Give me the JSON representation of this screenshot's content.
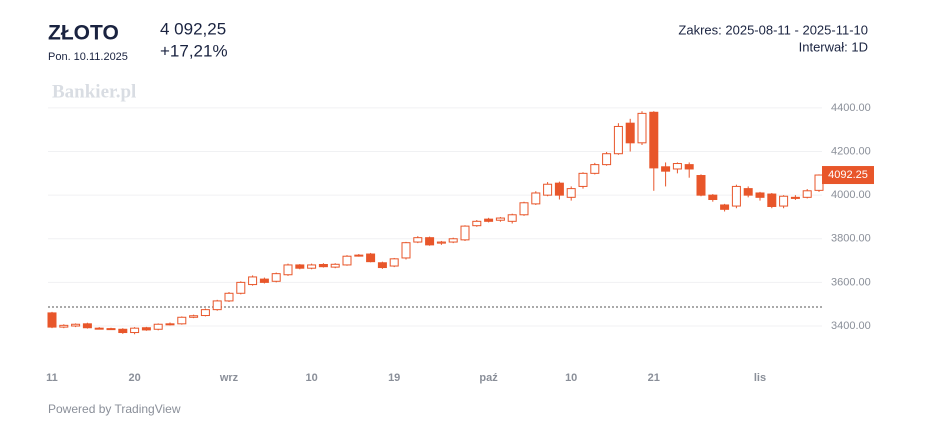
{
  "chart_data": {
    "type": "candlestick",
    "title": "ZŁOTO",
    "subtitle": "Pon. 10.11.2025",
    "price": "4 092,25",
    "change": "+17,21%",
    "range": "Zakres: 2025-08-11 - 2025-11-10",
    "interval": "Interwał: 1D",
    "watermark": "Bankier.pl",
    "footer": "Powered by TradingView",
    "categories": [
      "11",
      null,
      null,
      null,
      null,
      null,
      null,
      "20",
      null,
      null,
      null,
      null,
      null,
      null,
      null,
      "wrz",
      null,
      null,
      null,
      null,
      null,
      null,
      "10",
      null,
      null,
      null,
      null,
      null,
      null,
      "19",
      null,
      null,
      null,
      null,
      null,
      null,
      null,
      "paź",
      null,
      null,
      null,
      null,
      null,
      null,
      "10",
      null,
      null,
      null,
      null,
      null,
      null,
      "21",
      null,
      null,
      null,
      null,
      null,
      null,
      null,
      null,
      "lis",
      null,
      null,
      null,
      null,
      null
    ],
    "open": [
      3460,
      3395,
      3400,
      3410,
      3390,
      3388,
      3385,
      3370,
      3392,
      3385,
      3408,
      3410,
      3440,
      3448,
      3475,
      3515,
      3550,
      3590,
      3615,
      3605,
      3635,
      3680,
      3665,
      3682,
      3670,
      3680,
      3722,
      3730,
      3690,
      3675,
      3712,
      3785,
      3805,
      3780,
      3785,
      3795,
      3860,
      3890,
      3885,
      3880,
      3910,
      3960,
      4000,
      4055,
      3990,
      4040,
      4100,
      4140,
      4190,
      4330,
      4240,
      4380,
      4130,
      4120,
      4140,
      4090,
      4000,
      3955,
      3950,
      4030,
      4010,
      4005,
      3950,
      3990,
      3990,
      4022
    ],
    "high": [
      3465,
      3408,
      3412,
      3415,
      3395,
      3392,
      3390,
      3395,
      3396,
      3412,
      3416,
      3444,
      3452,
      3480,
      3520,
      3556,
      3605,
      3632,
      3622,
      3645,
      3686,
      3684,
      3686,
      3688,
      3688,
      3725,
      3730,
      3735,
      3695,
      3712,
      3786,
      3812,
      3810,
      3790,
      3805,
      3862,
      3886,
      3896,
      3900,
      3915,
      3970,
      4018,
      4060,
      4062,
      4040,
      4105,
      4148,
      4198,
      4330,
      4350,
      4385,
      4385,
      4150,
      4150,
      4150,
      4095,
      4005,
      3960,
      4048,
      4040,
      4015,
      4010,
      4000,
      4000,
      4028,
      4095
    ],
    "low": [
      3390,
      3390,
      3395,
      3388,
      3384,
      3382,
      3364,
      3362,
      3378,
      3380,
      3402,
      3406,
      3436,
      3444,
      3470,
      3510,
      3545,
      3585,
      3595,
      3600,
      3630,
      3660,
      3660,
      3668,
      3665,
      3676,
      3718,
      3692,
      3662,
      3670,
      3705,
      3780,
      3768,
      3772,
      3780,
      3790,
      3855,
      3875,
      3878,
      3870,
      3905,
      3955,
      3995,
      3980,
      3975,
      4030,
      4095,
      4135,
      4185,
      4200,
      4230,
      4020,
      4040,
      4100,
      4080,
      3995,
      3970,
      3925,
      3940,
      3990,
      3975,
      3940,
      3940,
      3978,
      3985,
      4015
    ],
    "close": [
      3395,
      3403,
      3408,
      3392,
      3388,
      3386,
      3370,
      3390,
      3382,
      3408,
      3410,
      3440,
      3447,
      3475,
      3515,
      3550,
      3600,
      3625,
      3600,
      3640,
      3680,
      3665,
      3680,
      3672,
      3683,
      3720,
      3725,
      3695,
      3668,
      3708,
      3782,
      3805,
      3772,
      3785,
      3800,
      3858,
      3880,
      3880,
      3895,
      3910,
      3965,
      4010,
      4050,
      4000,
      4030,
      4100,
      4140,
      4190,
      4315,
      4240,
      4375,
      4125,
      4110,
      4145,
      4120,
      4000,
      3980,
      3935,
      4040,
      4000,
      3990,
      3948,
      3995,
      3985,
      4020,
      4092.25
    ],
    "last_value_label": "4092.25",
    "reference_line": 3487,
    "color": "#e8562a",
    "ylim": [
      3267,
      4473
    ],
    "yticks": [
      {
        "value": 3400,
        "label": "3400.00"
      },
      {
        "value": 3600,
        "label": "3600.00"
      },
      {
        "value": 3800,
        "label": "3800.00"
      },
      {
        "value": 4000,
        "label": "4000.00"
      },
      {
        "value": 4200,
        "label": "4200.00"
      },
      {
        "value": 4400,
        "label": "4400.00"
      }
    ],
    "grid": true
  }
}
